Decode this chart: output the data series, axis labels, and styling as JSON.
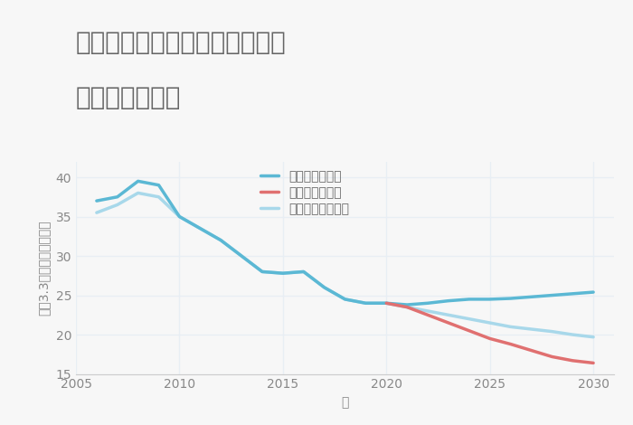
{
  "title_line1": "兵庫県たつの市揖保川町片島の",
  "title_line2": "土地の価格推移",
  "xlabel": "年",
  "ylabel_chars": [
    "坪",
    "（",
    "3",
    ".",
    "3",
    "㎡",
    "）",
    "単",
    "価",
    "（",
    "万",
    "円",
    "）"
  ],
  "ylim": [
    15,
    42
  ],
  "xlim": [
    2005,
    2031
  ],
  "yticks": [
    15,
    20,
    25,
    30,
    35,
    40
  ],
  "xticks": [
    2005,
    2010,
    2015,
    2020,
    2025,
    2030
  ],
  "bg_color": "#f7f7f7",
  "grid_color": "#e8eef4",
  "good_scenario": {
    "x": [
      2006,
      2007,
      2008,
      2009,
      2010,
      2011,
      2012,
      2013,
      2014,
      2015,
      2016,
      2017,
      2018,
      2019,
      2020,
      2021,
      2022,
      2023,
      2024,
      2025,
      2026,
      2027,
      2028,
      2029,
      2030
    ],
    "y": [
      37.0,
      37.5,
      39.5,
      39.0,
      35.0,
      33.5,
      32.0,
      30.0,
      28.0,
      27.8,
      28.0,
      26.0,
      24.5,
      24.0,
      24.0,
      23.8,
      24.0,
      24.3,
      24.5,
      24.5,
      24.6,
      24.8,
      25.0,
      25.2,
      25.4
    ],
    "color": "#5bb8d4",
    "linewidth": 2.5,
    "label": "グッドシナリオ"
  },
  "bad_scenario": {
    "x": [
      2020,
      2021,
      2022,
      2023,
      2024,
      2025,
      2026,
      2027,
      2028,
      2029,
      2030
    ],
    "y": [
      24.0,
      23.5,
      22.5,
      21.5,
      20.5,
      19.5,
      18.8,
      18.0,
      17.2,
      16.7,
      16.4
    ],
    "color": "#e07070",
    "linewidth": 2.5,
    "label": "バッドシナリオ"
  },
  "normal_scenario": {
    "x": [
      2006,
      2007,
      2008,
      2009,
      2010,
      2011,
      2012,
      2013,
      2014,
      2015,
      2016,
      2017,
      2018,
      2019,
      2020,
      2021,
      2022,
      2023,
      2024,
      2025,
      2026,
      2027,
      2028,
      2029,
      2030
    ],
    "y": [
      35.5,
      36.5,
      38.0,
      37.5,
      35.0,
      33.5,
      32.0,
      30.0,
      28.0,
      27.8,
      28.0,
      26.0,
      24.5,
      24.0,
      24.0,
      23.5,
      23.0,
      22.5,
      22.0,
      21.5,
      21.0,
      20.7,
      20.4,
      20.0,
      19.7
    ],
    "color": "#a8d8ea",
    "linewidth": 2.5,
    "label": "ノーマルシナリオ"
  },
  "title_color": "#666666",
  "tick_color": "#888888",
  "legend_text_color": "#666666",
  "title_fontsize": 20,
  "label_fontsize": 10,
  "tick_fontsize": 10,
  "legend_fontsize": 10
}
